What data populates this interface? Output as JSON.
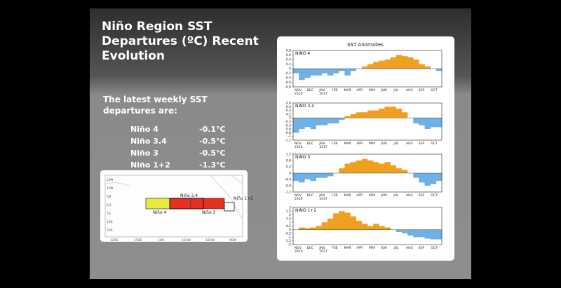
{
  "slide": {
    "title_lines": [
      "Niño Region SST",
      "Departures (ºC) Recent",
      "Evolution"
    ],
    "intro_lines": [
      "The latest weekly SST",
      "departures are:"
    ],
    "departures": [
      {
        "region": "Niño 4",
        "value": "-0.1°C"
      },
      {
        "region": "Niño 3.4",
        "value": "-0.5°C"
      },
      {
        "region": "Niño 3",
        "value": "-0.5°C"
      },
      {
        "region": "Niño 1+2",
        "value": "-1.3°C"
      }
    ],
    "map": {
      "boxes": [
        "Niño 4",
        "Niño 3.4",
        "Niño 3",
        "Niño 1+2"
      ],
      "lat_labels": [
        "20N",
        "10N",
        "5N",
        "EQ",
        "5S",
        "10S",
        "20S"
      ],
      "lon_labels": [
        "120E",
        "150E",
        "180",
        "150W",
        "120W",
        "90W"
      ]
    },
    "sst_chart": {
      "title": "SST Anomalies",
      "months": [
        "NOV",
        "DEC",
        "JAN",
        "FEB",
        "MAR",
        "APR",
        "MAY",
        "JUN",
        "JUL",
        "AUG",
        "SEP",
        "OCT"
      ],
      "years": [
        "2016",
        "2017"
      ],
      "positive_color": "#f0a020",
      "negative_color": "#6fb0e6",
      "panels": [
        {
          "name": "NINO 4",
          "ylim": [
            -0.8,
            0.8
          ],
          "yticks": [
            -0.8,
            -0.6,
            -0.4,
            -0.2,
            0,
            0.2,
            0.4,
            0.6,
            0.8
          ],
          "values": [
            -0.2,
            -0.5,
            -0.4,
            -0.3,
            -0.3,
            -0.2,
            -0.3,
            -0.2,
            -0.1,
            -0.3,
            -0.1,
            0,
            0.1,
            0.2,
            0.3,
            0.35,
            0.4,
            0.5,
            0.6,
            0.55,
            0.5,
            0.4,
            0.2,
            0.1,
            0,
            -0.1
          ]
        },
        {
          "name": "NINO 3.4",
          "ylim": [
            -1.2,
            0.8
          ],
          "yticks": [
            -1.2,
            -1,
            -0.8,
            -0.6,
            -0.4,
            -0.2,
            0,
            0.2,
            0.4,
            0.6,
            0.8
          ],
          "values": [
            -0.8,
            -0.6,
            -0.5,
            -0.6,
            -0.4,
            -0.4,
            -0.3,
            -0.3,
            -0.1,
            0.1,
            0.2,
            0.3,
            0.3,
            0.4,
            0.4,
            0.5,
            0.6,
            0.6,
            0.5,
            0.3,
            0,
            -0.3,
            -0.4,
            -0.6,
            -0.5,
            -0.5
          ]
        },
        {
          "name": "NINO 3",
          "ylim": [
            -1.2,
            1.2
          ],
          "yticks": [
            -1.2,
            -0.8,
            -0.4,
            0,
            0.4,
            0.8,
            1.2
          ],
          "values": [
            -0.5,
            -0.6,
            -0.4,
            -0.5,
            -0.3,
            -0.3,
            -0.2,
            0,
            0.3,
            0.6,
            0.7,
            0.8,
            0.9,
            0.8,
            0.7,
            0.6,
            0.7,
            0.5,
            0.3,
            0.2,
            0,
            -0.3,
            -0.6,
            -0.8,
            -0.7,
            -0.5
          ]
        },
        {
          "name": "NINO 1+2",
          "ylim": [
            -2,
            3
          ],
          "yticks": [
            -2,
            -1.5,
            -1,
            -0.5,
            0,
            0.5,
            1,
            1.5,
            2,
            2.5,
            3
          ],
          "values": [
            0,
            0.3,
            0.2,
            0.3,
            0.5,
            1,
            1.5,
            2.2,
            2.5,
            2.3,
            1.8,
            1.2,
            0.8,
            0.5,
            0.8,
            0.5,
            0.3,
            0,
            -0.3,
            -0.5,
            -0.8,
            -1,
            -1,
            -1.2,
            -1.3,
            -1.3
          ]
        }
      ]
    }
  }
}
